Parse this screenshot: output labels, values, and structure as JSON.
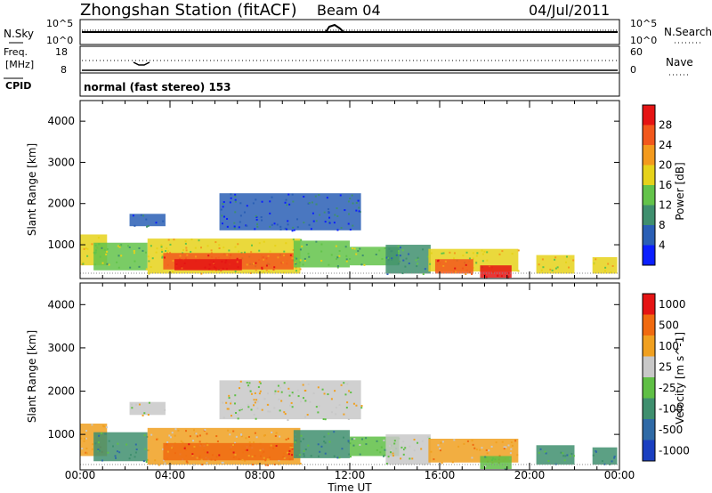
{
  "header": {
    "title": "Zhongshan Station (fitACF)",
    "beam": "Beam 04",
    "date": "04/Jul/2011"
  },
  "top_panels": {
    "nsky_label": "N.Sky",
    "nsky_ticks": [
      "10^5",
      "10^0"
    ],
    "nsearch_label": "N.Search",
    "nsearch_ticks": [
      "10^5",
      "10^0"
    ],
    "freq_label": [
      "Freq.",
      "[MHz]"
    ],
    "freq_ticks": [
      "18",
      "8"
    ],
    "nave_label": "Nave",
    "nave_ticks": [
      "60",
      "0"
    ],
    "cpid_label": "CPID",
    "cpid_text": "normal (fast stereo) 153"
  },
  "chart_data": [
    {
      "type": "heatmap",
      "title": "",
      "xlabel": "Time UT",
      "ylabel": "Slant Range [km]",
      "x_ticks": [
        "00:00",
        "04:00",
        "08:00",
        "12:00",
        "16:00",
        "20:00",
        "00:00"
      ],
      "y_ticks": [
        "1000",
        "2000",
        "3000",
        "4000"
      ],
      "ylim": [
        180,
        4500
      ],
      "xlim_hours": [
        0,
        24
      ],
      "colorbar": {
        "label": "Power [dB]",
        "ticks": [
          "4",
          "8",
          "12",
          "16",
          "20",
          "24",
          "28"
        ],
        "colors": [
          "#0b1fff",
          "#2a5fb5",
          "#3f8f6e",
          "#63c34a",
          "#e6d21a",
          "#f39a1d",
          "#f2581c",
          "#e51414"
        ]
      },
      "regions": [
        {
          "t0": 0.0,
          "t1": 1.2,
          "r0": 500,
          "r1": 1250,
          "level": 4
        },
        {
          "t0": 0.6,
          "t1": 3.0,
          "r0": 380,
          "r1": 1050,
          "level": 3
        },
        {
          "t0": 2.2,
          "t1": 3.8,
          "r0": 1450,
          "r1": 1750,
          "level": 1
        },
        {
          "t0": 3.0,
          "t1": 9.8,
          "r0": 300,
          "r1": 1150,
          "level": 4
        },
        {
          "t0": 3.7,
          "t1": 9.5,
          "r0": 400,
          "r1": 800,
          "level": 6
        },
        {
          "t0": 4.2,
          "t1": 7.2,
          "r0": 380,
          "r1": 650,
          "level": 7
        },
        {
          "t0": 6.2,
          "t1": 12.5,
          "r0": 1350,
          "r1": 2250,
          "level": 1
        },
        {
          "t0": 9.5,
          "t1": 12.0,
          "r0": 450,
          "r1": 1100,
          "level": 3
        },
        {
          "t0": 12.0,
          "t1": 14.2,
          "r0": 500,
          "r1": 950,
          "level": 3
        },
        {
          "t0": 13.6,
          "t1": 15.6,
          "r0": 300,
          "r1": 1000,
          "level": 2
        },
        {
          "t0": 15.5,
          "t1": 19.5,
          "r0": 350,
          "r1": 900,
          "level": 4
        },
        {
          "t0": 15.8,
          "t1": 17.5,
          "r0": 300,
          "r1": 650,
          "level": 6
        },
        {
          "t0": 17.8,
          "t1": 19.2,
          "r0": 200,
          "r1": 500,
          "level": 7
        },
        {
          "t0": 20.3,
          "t1": 22.0,
          "r0": 300,
          "r1": 750,
          "level": 4
        },
        {
          "t0": 22.8,
          "t1": 23.9,
          "r0": 300,
          "r1": 700,
          "level": 4
        }
      ]
    },
    {
      "type": "heatmap",
      "title": "",
      "xlabel": "Time UT",
      "ylabel": "Slant Range [km]",
      "x_ticks": [
        "00:00",
        "04:00",
        "08:00",
        "12:00",
        "16:00",
        "20:00",
        "00:00"
      ],
      "y_ticks": [
        "1000",
        "2000",
        "3000",
        "4000"
      ],
      "ylim": [
        180,
        4500
      ],
      "xlim_hours": [
        0,
        24
      ],
      "colorbar": {
        "label": "Velocity [m s^-1]",
        "ticks": [
          "1000",
          "500",
          "100",
          "25",
          "-25",
          "-100",
          "-500",
          "-1000"
        ],
        "colors": [
          "#1a3fc0",
          "#2f6aa6",
          "#3f8f6e",
          "#5fbf45",
          "#c8c8c8",
          "#f0a020",
          "#f06a10",
          "#e51414"
        ]
      },
      "regions": [
        {
          "t0": 0.0,
          "t1": 1.2,
          "r0": 500,
          "r1": 1250,
          "level": 5
        },
        {
          "t0": 0.6,
          "t1": 3.0,
          "r0": 380,
          "r1": 1050,
          "level": 2
        },
        {
          "t0": 2.2,
          "t1": 3.8,
          "r0": 1450,
          "r1": 1750,
          "level": 4
        },
        {
          "t0": 3.0,
          "t1": 9.8,
          "r0": 300,
          "r1": 1150,
          "level": 5
        },
        {
          "t0": 3.7,
          "t1": 9.5,
          "r0": 400,
          "r1": 800,
          "level": 6
        },
        {
          "t0": 6.2,
          "t1": 12.5,
          "r0": 1350,
          "r1": 2250,
          "level": 4
        },
        {
          "t0": 9.5,
          "t1": 12.0,
          "r0": 450,
          "r1": 1100,
          "level": 2
        },
        {
          "t0": 12.0,
          "t1": 14.2,
          "r0": 500,
          "r1": 950,
          "level": 3
        },
        {
          "t0": 13.6,
          "t1": 15.6,
          "r0": 300,
          "r1": 1000,
          "level": 4
        },
        {
          "t0": 15.5,
          "t1": 19.5,
          "r0": 350,
          "r1": 900,
          "level": 5
        },
        {
          "t0": 17.8,
          "t1": 19.2,
          "r0": 200,
          "r1": 500,
          "level": 3
        },
        {
          "t0": 20.3,
          "t1": 22.0,
          "r0": 300,
          "r1": 750,
          "level": 2
        },
        {
          "t0": 22.8,
          "t1": 23.9,
          "r0": 300,
          "r1": 700,
          "level": 2
        }
      ]
    }
  ]
}
